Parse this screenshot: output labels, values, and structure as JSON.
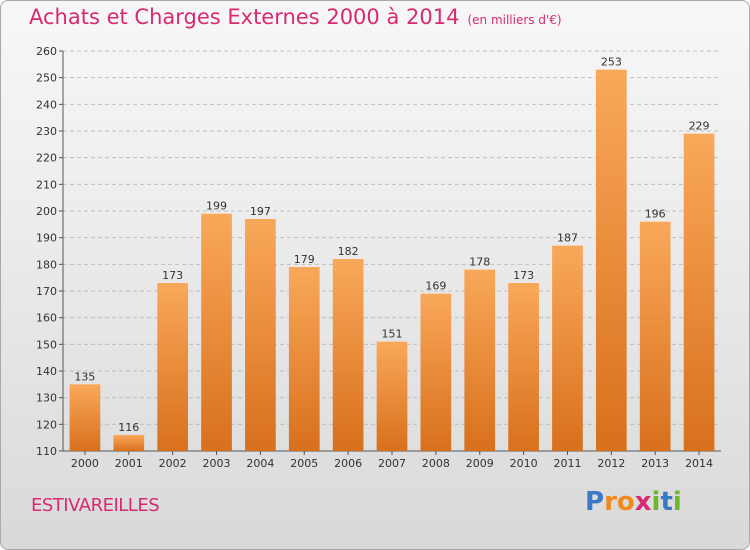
{
  "header": {
    "title": "Achats et Charges Externes 2000 à 2014",
    "subtitle": "(en milliers d'€)"
  },
  "commune": "ESTIVAREILLES",
  "logo": {
    "text": "Proxiti",
    "letters": [
      "P",
      "r",
      "o",
      "x",
      "i",
      "t",
      "i"
    ],
    "colors": [
      "#3a78c8",
      "#f08a1e",
      "#f08a1e",
      "#d72a72",
      "#6bb72e",
      "#3a78c8",
      "#6bb72e"
    ]
  },
  "colors": {
    "bar_light": "#f9a85a",
    "bar_dark": "#d8701c",
    "title": "#d72a72",
    "grid": "#bfbfbf"
  },
  "chart_data": {
    "type": "bar",
    "title": "Achats et Charges Externes 2000 à 2014",
    "subtitle": "(en milliers d'€)",
    "xlabel": "",
    "ylabel": "",
    "categories": [
      "2000",
      "2001",
      "2002",
      "2003",
      "2004",
      "2005",
      "2006",
      "2007",
      "2008",
      "2009",
      "2010",
      "2011",
      "2012",
      "2013",
      "2014"
    ],
    "values": [
      135,
      116,
      173,
      199,
      197,
      179,
      182,
      151,
      169,
      178,
      173,
      187,
      253,
      196,
      229
    ],
    "ylim": [
      110,
      260
    ],
    "yticks": [
      110,
      120,
      130,
      140,
      150,
      160,
      170,
      180,
      190,
      200,
      210,
      220,
      230,
      240,
      250,
      260
    ],
    "grid": true,
    "legend": "none"
  }
}
